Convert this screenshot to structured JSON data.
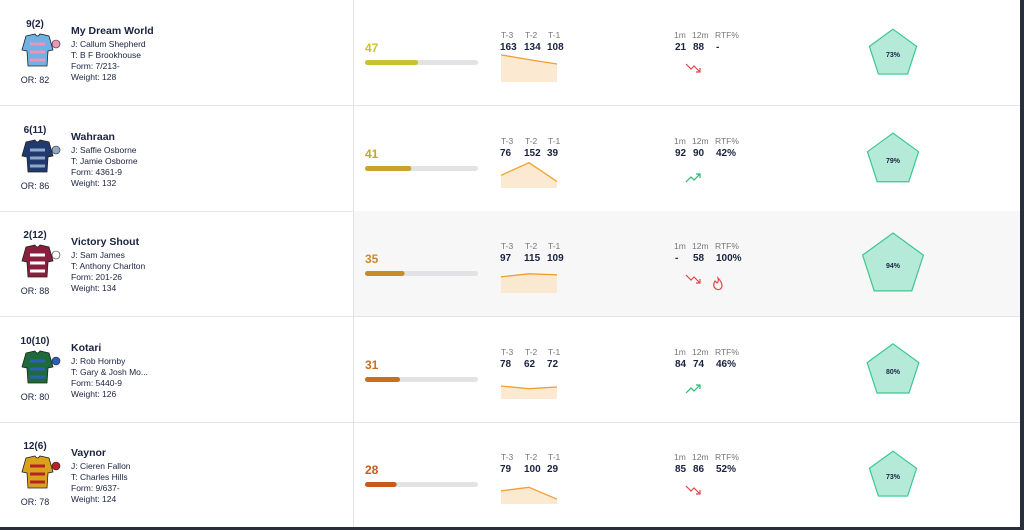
{
  "columns": {
    "recent": [
      "T-3",
      "T-2",
      "T-1"
    ],
    "stats": [
      "1m",
      "12m",
      "RTF%"
    ]
  },
  "runners": [
    {
      "number": "9(2)",
      "name": "My Dream World",
      "jockey": "J: Callum Shepherd",
      "trainer": "T: B F Brookhouse",
      "form": "Form: 7/213-",
      "weight": "Weight: 128",
      "or": "OR: 82",
      "rating": 47,
      "color": "#c9c12e",
      "silk": [
        "#6fb2e3",
        "#e996b8"
      ],
      "recent": [
        163,
        134,
        108
      ],
      "stats": [
        "21",
        "88",
        "-"
      ],
      "trend": "down",
      "hot": false,
      "profile": {
        "value": 73,
        "label": "73%"
      }
    },
    {
      "number": "6(11)",
      "name": "Wahraan",
      "jockey": "J: Saffie Osborne",
      "trainer": "T: Jamie Osborne",
      "form": "Form: 4361-9",
      "weight": "Weight: 132",
      "or": "OR: 86",
      "rating": 41,
      "color": "#c9a428",
      "silk": [
        "#1f3a6e",
        "#8fa8c8"
      ],
      "recent": [
        76,
        152,
        39
      ],
      "stats": [
        "92",
        "90",
        "42%"
      ],
      "trend": "up",
      "hot": false,
      "profile": {
        "value": 79,
        "label": "79%"
      }
    },
    {
      "number": "2(12)",
      "name": "Victory Shout",
      "jockey": "J: Sam James",
      "trainer": "T: Anthony Charlton",
      "form": "Form: 201-26",
      "weight": "Weight: 134",
      "or": "OR: 88",
      "rating": 35,
      "color": "#c98a2a",
      "silk": [
        "#8a1f3d",
        "#ffffff"
      ],
      "recent": [
        97,
        115,
        109
      ],
      "stats": [
        "-",
        "58",
        "100%"
      ],
      "trend": "down",
      "hot": true,
      "profile": {
        "value": 94,
        "label": "94%"
      }
    },
    {
      "number": "10(10)",
      "name": "Kotari",
      "jockey": "J: Rob Hornby",
      "trainer": "T: Gary & Josh Mo...",
      "form": "Form: 5440-9",
      "weight": "Weight: 126",
      "or": "OR: 80",
      "rating": 31,
      "color": "#c96d1f",
      "silk": [
        "#1d6b3a",
        "#2b5fb8"
      ],
      "recent": [
        78,
        62,
        72
      ],
      "stats": [
        "84",
        "74",
        "46%"
      ],
      "trend": "up",
      "hot": false,
      "profile": {
        "value": 80,
        "label": "80%"
      }
    },
    {
      "number": "12(6)",
      "name": "Vaynor",
      "jockey": "J: Cieren Fallon",
      "trainer": "T: Charles Hills",
      "form": "Form: 9/637-",
      "weight": "Weight: 124",
      "or": "OR: 78",
      "rating": 28,
      "color": "#c95a1a",
      "silk": [
        "#d9a21b",
        "#b8202a"
      ],
      "recent": [
        79,
        100,
        29
      ],
      "stats": [
        "85",
        "86",
        "52%"
      ],
      "trend": "down",
      "hot": false,
      "profile": {
        "value": 73,
        "label": "73%"
      }
    }
  ]
}
